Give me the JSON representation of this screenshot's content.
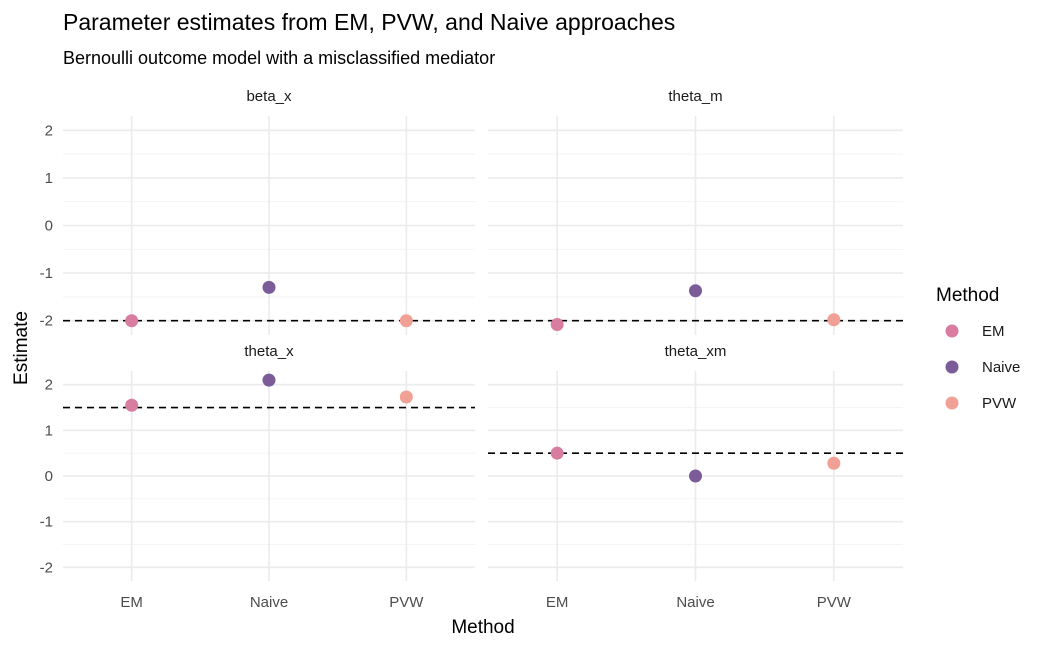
{
  "chart_data": {
    "type": "scatter",
    "title": "Parameter estimates from EM, PVW, and Naive approaches",
    "subtitle": "Bernoulli outcome model with a misclassified mediator",
    "xlabel": "Method",
    "ylabel": "Estimate",
    "categories": [
      "EM",
      "Naive",
      "PVW"
    ],
    "ylim": [
      -2.3,
      2.3
    ],
    "yticks": [
      -2,
      -1,
      0,
      1,
      2
    ],
    "grid": true,
    "legend": {
      "title": "Method",
      "placement": "right",
      "entries": [
        {
          "name": "EM",
          "color": "#d87da0"
        },
        {
          "name": "Naive",
          "color": "#7b5c99"
        },
        {
          "name": "PVW",
          "color": "#f0a095"
        }
      ]
    },
    "facets": [
      {
        "label": "beta_x",
        "true_value": -2,
        "values": {
          "EM": -2.0,
          "Naive": -1.3,
          "PVW": -2.0
        }
      },
      {
        "label": "theta_m",
        "true_value": -2,
        "values": {
          "EM": -2.08,
          "Naive": -1.37,
          "PVW": -1.98
        }
      },
      {
        "label": "theta_x",
        "true_value": 1.5,
        "values": {
          "EM": 1.55,
          "Naive": 2.1,
          "PVW": 1.73
        }
      },
      {
        "label": "theta_xm",
        "true_value": 0.5,
        "values": {
          "EM": 0.5,
          "Naive": 0.0,
          "PVW": 0.28
        }
      }
    ]
  }
}
